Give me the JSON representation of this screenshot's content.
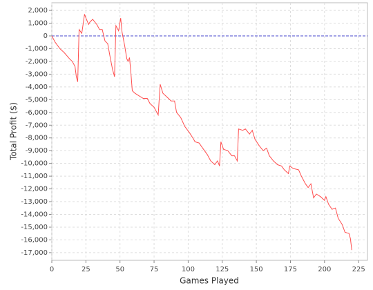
{
  "chart_data": {
    "type": "line",
    "x_label": "Games Played",
    "y_label": "Total Profit ($)",
    "xlim": [
      0,
      231.5
    ],
    "ylim": [
      -17600,
      2600
    ],
    "xticks": [
      0,
      25,
      50,
      75,
      100,
      125,
      150,
      175,
      200,
      225
    ],
    "yticks": [
      {
        "value": 2000,
        "label": "2,000"
      },
      {
        "value": 1000,
        "label": "1,000"
      },
      0,
      {
        "value": -1000,
        "label": "-1,000"
      },
      {
        "value": -2000,
        "label": "-2,000"
      },
      {
        "value": -3000,
        "label": "-3,000"
      },
      {
        "value": -4000,
        "label": "-4,000"
      },
      {
        "value": -5000,
        "label": "-5,000"
      },
      {
        "value": -6000,
        "label": "-6,000"
      },
      {
        "value": -7000,
        "label": "-7,000"
      },
      {
        "value": -8000,
        "label": "-8,000"
      },
      {
        "value": -9000,
        "label": "-9,000"
      },
      {
        "value": -10000,
        "label": "-10,000"
      },
      {
        "value": -11000,
        "label": "-11,000"
      },
      {
        "value": -12000,
        "label": "-12,000"
      },
      {
        "value": -13000,
        "label": "-13,000"
      },
      {
        "value": -14000,
        "label": "-14,000"
      },
      {
        "value": -15000,
        "label": "-15,000"
      },
      {
        "value": -16000,
        "label": "-16,000"
      },
      {
        "value": -17000,
        "label": "-17,000"
      }
    ],
    "grid": true,
    "zero_line": true,
    "zero_line_color": "#4444cc",
    "series": [
      {
        "color": "#ff4d4d",
        "x": [
          0,
          2.5,
          6,
          9,
          13,
          15,
          17,
          18,
          19,
          20,
          22,
          24,
          25,
          27,
          28,
          30,
          33,
          35,
          37,
          39,
          41,
          43,
          44.5,
          46,
          47,
          49,
          50.5,
          51.5,
          53.5,
          55,
          56,
          57,
          58,
          59,
          61,
          64,
          67,
          70,
          72,
          75,
          78,
          79.5,
          81.5,
          84.5,
          87.5,
          90,
          91.5,
          94.5,
          97.5,
          101,
          104,
          105,
          108,
          110,
          114,
          116.5,
          119.5,
          121.5,
          123,
          124,
          126,
          129,
          132,
          134,
          136,
          137,
          140,
          142,
          145,
          147,
          149,
          152,
          155,
          157.5,
          159.5,
          162.5,
          165.5,
          168.5,
          170.5,
          173.5,
          174.5,
          177,
          181,
          183,
          186,
          188,
          190,
          192,
          194,
          197,
          200,
          201,
          203,
          205.5,
          208,
          210,
          213,
          215,
          218,
          219,
          220
        ],
        "values": [
          0,
          -500,
          -1000,
          -1300,
          -1800,
          -2000,
          -2400,
          -3200,
          -3600,
          500,
          200,
          1700,
          1400,
          900,
          1100,
          1300,
          900,
          500,
          500,
          -400,
          -600,
          -1800,
          -2600,
          -3200,
          800,
          400,
          1400,
          300,
          -800,
          -1800,
          -2000,
          -1700,
          -2900,
          -4300,
          -4500,
          -4700,
          -4900,
          -4900,
          -5300,
          -5600,
          -6200,
          -3800,
          -4500,
          -4800,
          -5100,
          -5100,
          -6000,
          -6400,
          -7100,
          -7600,
          -8100,
          -8300,
          -8400,
          -8700,
          -9300,
          -9800,
          -10100,
          -9800,
          -10200,
          -8300,
          -8900,
          -9000,
          -9400,
          -9400,
          -9800,
          -7300,
          -7400,
          -7300,
          -7700,
          -7400,
          -8100,
          -8600,
          -9000,
          -8800,
          -9400,
          -9800,
          -10100,
          -10200,
          -10500,
          -10800,
          -10200,
          -10400,
          -10500,
          -11000,
          -11600,
          -11900,
          -11600,
          -12700,
          -12400,
          -12600,
          -12900,
          -12600,
          -13200,
          -13600,
          -13500,
          -14300,
          -14800,
          -15400,
          -15500,
          -15900,
          -16800
        ]
      }
    ]
  }
}
